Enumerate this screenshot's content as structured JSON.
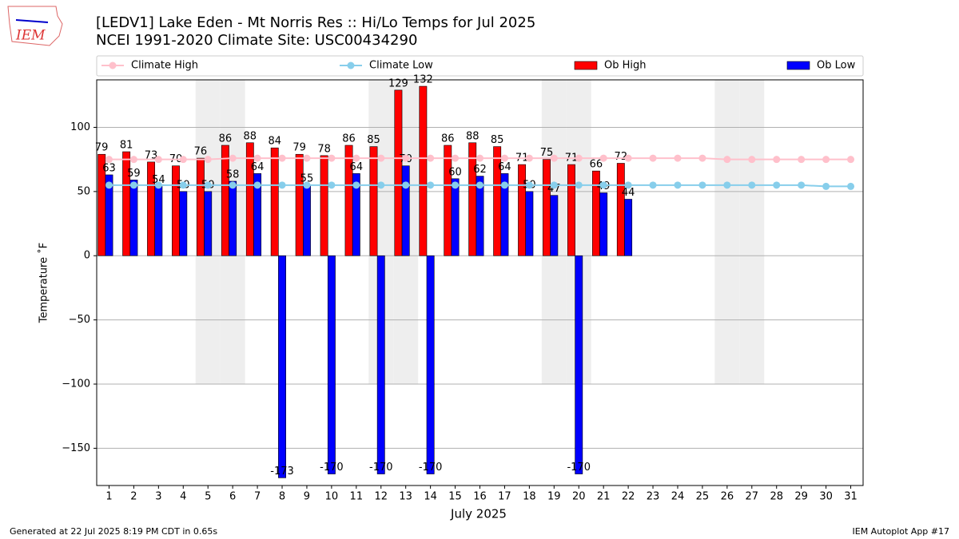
{
  "chart_data": {
    "type": "bar",
    "title": "[LEDV1] Lake Eden - Mt Norris Res :: Hi/Lo Temps for Jul 2025",
    "subtitle": "NCEI 1991-2020 Climate Site: USC00434290",
    "logo_text": "IEM",
    "x_label": "July 2025",
    "y_label": "Temperature ˚F",
    "footer_left": "Generated at 22 Jul 2025 8:19 PM CDT in 0.65s",
    "footer_right": "IEM Autoplot App #17",
    "categories": [
      "1",
      "2",
      "3",
      "4",
      "5",
      "6",
      "7",
      "8",
      "9",
      "10",
      "11",
      "12",
      "13",
      "14",
      "15",
      "16",
      "17",
      "18",
      "19",
      "20",
      "21",
      "22",
      "23",
      "24",
      "25",
      "26",
      "27",
      "28",
      "29",
      "30",
      "31"
    ],
    "shaded_days": [
      "5",
      "6",
      "12",
      "13",
      "19",
      "20",
      "26",
      "27"
    ],
    "shade_bottom": -100,
    "series": [
      {
        "name": "Climate High",
        "type": "line",
        "color": "#ffc0cb",
        "values": [
          75,
          75,
          75,
          75,
          75,
          76,
          76,
          76,
          76,
          76,
          76,
          76,
          76,
          76,
          76,
          76,
          76,
          76,
          76,
          76,
          76,
          76,
          76,
          76,
          76,
          75,
          75,
          75,
          75,
          75,
          75
        ]
      },
      {
        "name": "Climate Low",
        "type": "line",
        "color": "#87ceeb",
        "values": [
          55,
          55,
          55,
          55,
          55,
          55,
          55,
          55,
          55,
          55,
          55,
          55,
          55,
          55,
          55,
          55,
          55,
          55,
          55,
          55,
          55,
          55,
          55,
          55,
          55,
          55,
          55,
          55,
          55,
          54,
          54
        ]
      },
      {
        "name": "Ob High",
        "type": "bar",
        "color": "#ff0000",
        "values": [
          79,
          81,
          73,
          70,
          76,
          86,
          88,
          84,
          79,
          78,
          86,
          85,
          129,
          132,
          86,
          88,
          85,
          71,
          75,
          71,
          66,
          72,
          null,
          null,
          null,
          null,
          null,
          null,
          null,
          null,
          null
        ]
      },
      {
        "name": "Ob Low",
        "type": "bar",
        "color": "#0000ff",
        "values": [
          63,
          59,
          54,
          50,
          50,
          58,
          64,
          -173,
          55,
          -170,
          64,
          -170,
          70,
          -170,
          60,
          62,
          64,
          50,
          47,
          -170,
          49,
          44,
          null,
          null,
          null,
          null,
          null,
          null,
          null,
          null,
          null
        ]
      }
    ],
    "ylim": [
      -179,
      137
    ],
    "yticks": [
      {
        "value": -150,
        "label": "−150"
      },
      {
        "value": -100,
        "label": "−100"
      },
      {
        "value": -50,
        "label": "−50"
      },
      0,
      50,
      100
    ],
    "grid": true,
    "legend": "top"
  }
}
